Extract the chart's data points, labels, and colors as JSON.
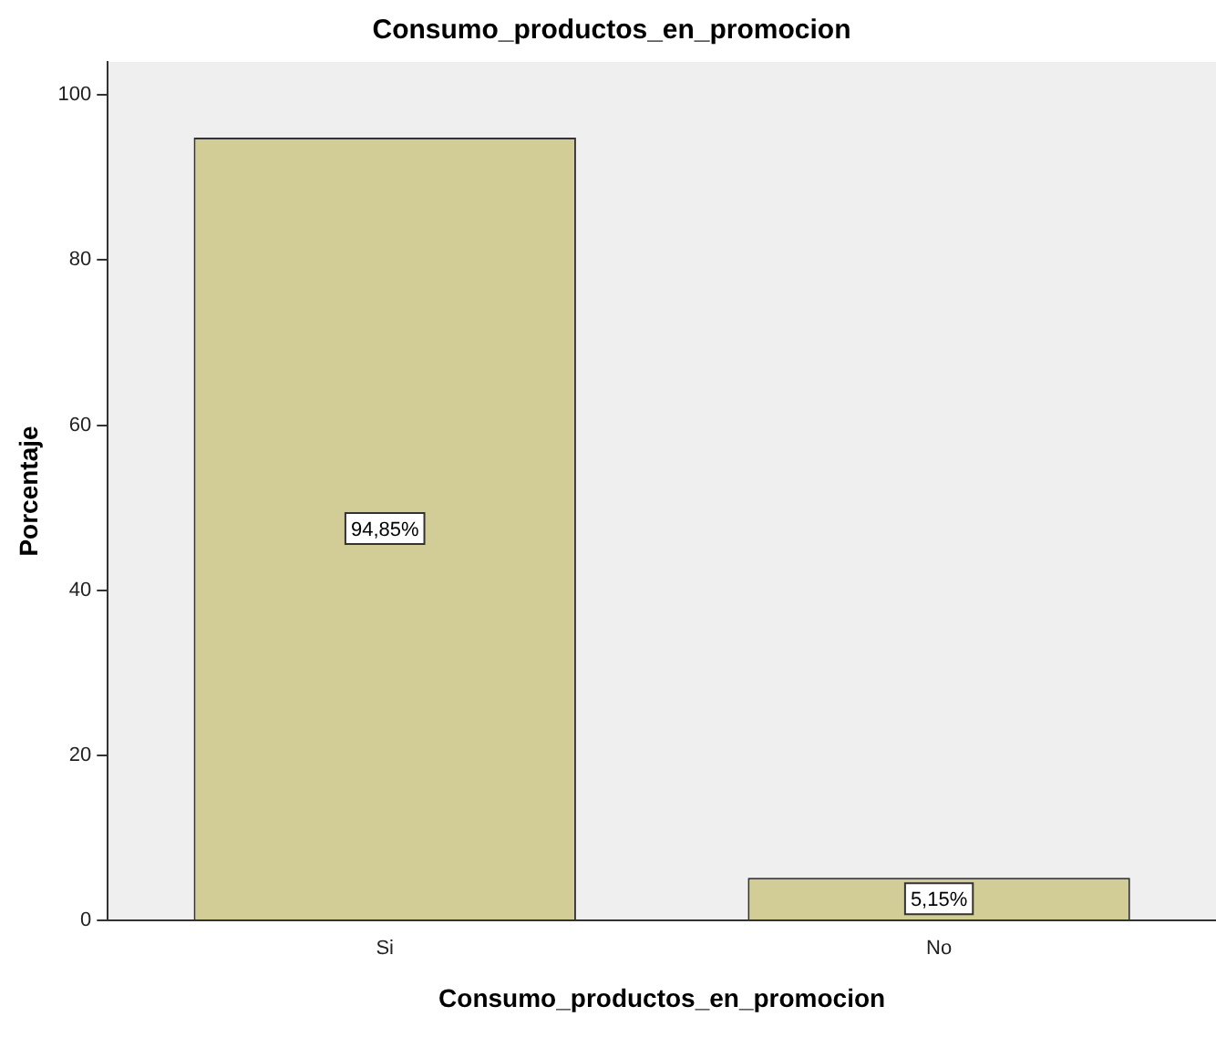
{
  "chart_data": {
    "type": "bar",
    "title": "Consumo_productos_en_promocion",
    "xlabel": "Consumo_productos_en_promocion",
    "ylabel": "Porcentaje",
    "categories": [
      "Si",
      "No"
    ],
    "values": [
      94.85,
      5.15
    ],
    "value_labels": [
      "94,85%",
      "5,15%"
    ],
    "color": "#d2cd96",
    "ylim": [
      0,
      104
    ],
    "yticks": [
      0,
      20,
      40,
      60,
      80,
      100
    ],
    "grid": false,
    "legend": false
  }
}
